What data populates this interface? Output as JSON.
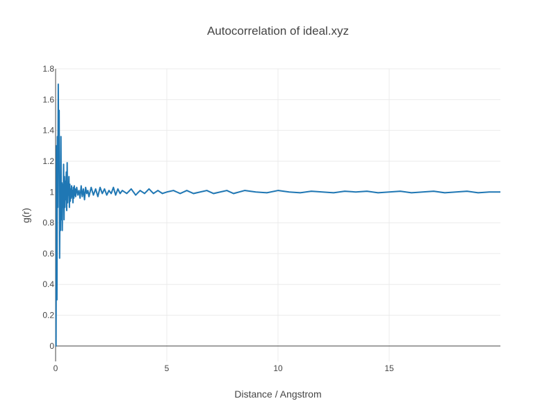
{
  "chart_data": {
    "type": "line",
    "title": "Autocorrelation of ideal.xyz",
    "xlabel": "Distance / Angstrom",
    "ylabel": "g(r)",
    "xlim": [
      0,
      20
    ],
    "ylim": [
      -0.1,
      1.8
    ],
    "x_ticks": [
      0,
      5,
      10,
      15
    ],
    "y_ticks": [
      0,
      0.2,
      0.4,
      0.6,
      0.8,
      1,
      1.2,
      1.4,
      1.6,
      1.8
    ],
    "x_tick_labels": [
      "0",
      "5",
      "10",
      "15"
    ],
    "y_tick_labels": [
      "0",
      "0.2",
      "0.4",
      "0.6",
      "0.8",
      "1",
      "1.2",
      "1.4",
      "1.6",
      "1.8"
    ],
    "grid": true,
    "legend": "none",
    "series": [
      {
        "color": "#1f77b4",
        "x": [
          0.0,
          0.02,
          0.04,
          0.06,
          0.08,
          0.1,
          0.12,
          0.14,
          0.16,
          0.18,
          0.2,
          0.22,
          0.24,
          0.26,
          0.28,
          0.3,
          0.32,
          0.34,
          0.36,
          0.38,
          0.4,
          0.42,
          0.44,
          0.46,
          0.48,
          0.5,
          0.52,
          0.54,
          0.56,
          0.58,
          0.6,
          0.62,
          0.64,
          0.66,
          0.68,
          0.7,
          0.72,
          0.74,
          0.76,
          0.78,
          0.8,
          0.82,
          0.84,
          0.86,
          0.88,
          0.9,
          0.95,
          1.0,
          1.05,
          1.1,
          1.15,
          1.2,
          1.25,
          1.3,
          1.35,
          1.4,
          1.45,
          1.5,
          1.6,
          1.7,
          1.8,
          1.9,
          2.0,
          2.1,
          2.2,
          2.3,
          2.4,
          2.5,
          2.6,
          2.7,
          2.8,
          2.9,
          3.0,
          3.2,
          3.4,
          3.6,
          3.8,
          4.0,
          4.2,
          4.4,
          4.6,
          4.8,
          5.0,
          5.3,
          5.6,
          5.9,
          6.2,
          6.5,
          6.8,
          7.1,
          7.4,
          7.7,
          8.0,
          8.5,
          9.0,
          9.5,
          10.0,
          10.5,
          11.0,
          11.5,
          12.0,
          12.5,
          13.0,
          13.5,
          14.0,
          14.5,
          15.0,
          15.5,
          16.0,
          16.5,
          17.0,
          17.5,
          18.0,
          18.5,
          19.0,
          19.5,
          20.0
        ],
        "y": [
          0.0,
          0.0,
          1.3,
          0.3,
          1.36,
          0.9,
          1.7,
          1.2,
          1.53,
          0.57,
          1.0,
          0.75,
          1.36,
          0.82,
          1.06,
          0.75,
          1.05,
          0.9,
          1.18,
          0.82,
          1.1,
          0.9,
          1.07,
          0.95,
          1.13,
          0.88,
          1.19,
          0.93,
          1.05,
          0.98,
          1.1,
          0.9,
          1.05,
          0.94,
          1.02,
          0.96,
          1.04,
          0.97,
          1.01,
          0.93,
          1.03,
          0.96,
          1.04,
          0.98,
          1.02,
          0.97,
          1.03,
          0.98,
          1.01,
          0.96,
          1.04,
          0.97,
          1.02,
          0.95,
          1.03,
          0.99,
          1.01,
          0.97,
          1.03,
          0.98,
          1.02,
          0.97,
          1.03,
          0.99,
          1.02,
          0.98,
          1.01,
          0.99,
          1.03,
          0.98,
          1.02,
          0.99,
          1.01,
          0.99,
          1.02,
          0.98,
          1.01,
          0.99,
          1.02,
          0.99,
          1.01,
          0.99,
          1.0,
          1.01,
          0.99,
          1.01,
          0.99,
          1.0,
          1.01,
          0.99,
          1.0,
          1.01,
          0.99,
          1.01,
          1.0,
          0.995,
          1.01,
          1.0,
          0.995,
          1.005,
          1.0,
          0.995,
          1.005,
          1.0,
          1.005,
          0.995,
          1.0,
          1.005,
          0.995,
          1.0,
          1.005,
          0.995,
          1.0,
          1.005,
          0.995,
          1.0,
          1.0
        ]
      }
    ]
  }
}
